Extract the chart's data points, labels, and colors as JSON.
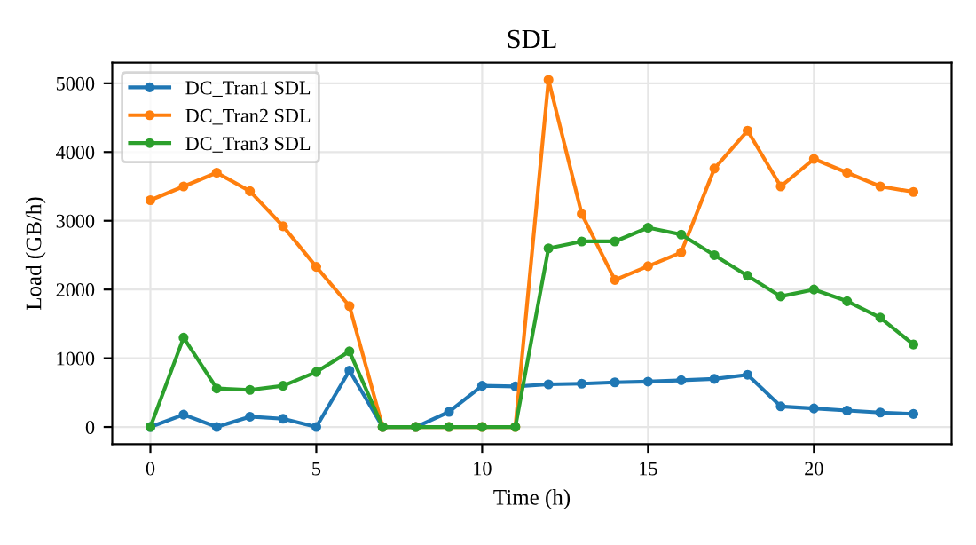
{
  "chart_data": {
    "type": "line",
    "title": "SDL",
    "xlabel": "Time (h)",
    "ylabel": "Load (GB/h)",
    "x": [
      0,
      1,
      2,
      3,
      4,
      5,
      6,
      7,
      8,
      9,
      10,
      11,
      12,
      13,
      14,
      15,
      16,
      17,
      18,
      19,
      20,
      21,
      22,
      23
    ],
    "series": [
      {
        "name": "DC_Tran1 SDL",
        "color": "#1f77b4",
        "values": [
          0,
          180,
          0,
          150,
          120,
          0,
          820,
          0,
          0,
          220,
          600,
          590,
          620,
          630,
          650,
          660,
          680,
          700,
          760,
          300,
          270,
          240,
          210,
          190
        ]
      },
      {
        "name": "DC_Tran2 SDL",
        "color": "#ff7f0e",
        "values": [
          3300,
          3500,
          3700,
          3430,
          2920,
          2330,
          1760,
          0,
          0,
          0,
          0,
          0,
          5050,
          3100,
          2140,
          2340,
          2540,
          3760,
          4310,
          3500,
          3900,
          3700,
          3500,
          3420
        ]
      },
      {
        "name": "DC_Tran3 SDL",
        "color": "#2ca02c",
        "values": [
          0,
          1300,
          560,
          540,
          600,
          800,
          1100,
          0,
          0,
          0,
          0,
          0,
          2600,
          2700,
          2700,
          2900,
          2800,
          2500,
          2200,
          1900,
          2000,
          1830,
          1590,
          1200
        ]
      }
    ],
    "xlim": [
      -1.15,
      24.15
    ],
    "xticks": [
      0,
      5,
      10,
      15,
      20
    ],
    "ylim": [
      -250,
      5300
    ],
    "yticks": [
      0,
      1000,
      2000,
      3000,
      4000,
      5000
    ],
    "grid": true,
    "legend": "top left",
    "marker": "circle",
    "line_style": "solid"
  }
}
